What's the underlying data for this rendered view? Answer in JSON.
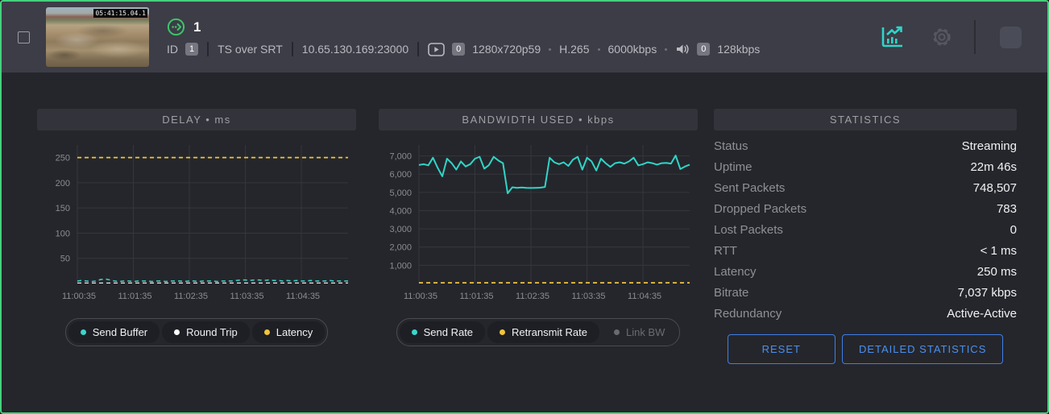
{
  "colors": {
    "accent_teal": "#2fd5c8",
    "accent_yellow": "#f2c43c",
    "accent_green": "#45d17d",
    "accent_blue": "#3f7fe8",
    "header_bg": "#3c3d47",
    "panel_bg": "#25262b",
    "title_bar_bg": "#33343b"
  },
  "header": {
    "title": "1",
    "thumbnail_timecode": "05:41:15.04.1",
    "id_label": "ID",
    "id_badge": "1",
    "protocol": "TS over SRT",
    "address": "10.65.130.169:23000",
    "video_track_badge": "0",
    "video_format": "1280x720p59",
    "video_codec": "H.265",
    "video_bitrate": "6000kbps",
    "audio_track_badge": "0",
    "audio_bitrate": "128kbps"
  },
  "panels": {
    "delay": {
      "title": "DELAY • ms",
      "legend": [
        {
          "label": "Send Buffer",
          "color": "#3bd6cd",
          "active": true
        },
        {
          "label": "Round Trip",
          "color": "#ffffff",
          "active": true
        },
        {
          "label": "Latency",
          "color": "#f2c43c",
          "active": true
        }
      ]
    },
    "bandwidth": {
      "title": "BANDWIDTH USED • kbps",
      "legend": [
        {
          "label": "Send Rate",
          "color": "#3bd6cd",
          "active": true
        },
        {
          "label": "Retransmit Rate",
          "color": "#f2c43c",
          "active": true
        },
        {
          "label": "Link BW",
          "color": "#6a6b72",
          "active": false
        }
      ]
    },
    "statistics": {
      "title": "STATISTICS",
      "rows": [
        {
          "label": "Status",
          "value": "Streaming"
        },
        {
          "label": "Uptime",
          "value": "22m 46s"
        },
        {
          "label": "Sent Packets",
          "value": "748,507"
        },
        {
          "label": "Dropped Packets",
          "value": "783"
        },
        {
          "label": "Lost Packets",
          "value": "0"
        },
        {
          "label": "RTT",
          "value": "< 1 ms"
        },
        {
          "label": "Latency",
          "value": "250 ms"
        },
        {
          "label": "Bitrate",
          "value": "7,037 kbps"
        },
        {
          "label": "Redundancy",
          "value": "Active-Active"
        }
      ],
      "buttons": {
        "reset": "RESET",
        "detailed": "DETAILED STATISTICS"
      }
    }
  },
  "chart_data": [
    {
      "type": "line",
      "title": "DELAY • ms",
      "xtick_labels": [
        "11:00:35",
        "11:01:35",
        "11:02:35",
        "11:03:35",
        "11:04:35"
      ],
      "xticks_s": [
        0,
        60,
        120,
        180,
        240
      ],
      "x_total_s": 290,
      "ylim": [
        0,
        275
      ],
      "yticks": [
        50,
        100,
        150,
        200,
        250
      ],
      "ytick_labels": [
        "50",
        "100",
        "150",
        "200",
        "250"
      ],
      "grid": true,
      "legend_position": "bottom",
      "n_points": 59,
      "series": [
        {
          "name": "Send Buffer",
          "color": "#3bd6cd",
          "dash": true,
          "width": 1.5,
          "values": [
            5,
            6,
            5,
            4,
            5,
            8,
            9,
            7,
            5,
            4,
            5,
            5,
            4,
            5,
            5,
            5,
            4,
            5,
            5,
            4,
            5,
            5,
            5,
            4,
            5,
            5,
            4,
            5,
            5,
            5,
            4,
            5,
            5,
            5,
            6,
            7,
            7,
            6,
            7,
            7,
            6,
            7,
            6,
            6,
            5,
            6,
            5,
            6,
            5,
            5,
            6,
            5,
            5,
            5,
            6,
            5,
            5,
            5,
            5
          ]
        },
        {
          "name": "Round Trip",
          "color": "#e8e9ec",
          "dash": true,
          "width": 1.2,
          "const": 1
        },
        {
          "name": "Latency",
          "color": "#f2c43c",
          "dash": true,
          "width": 1.8,
          "const": 250
        }
      ]
    },
    {
      "type": "line",
      "title": "BANDWIDTH USED • kbps",
      "xtick_labels": [
        "11:00:35",
        "11:01:35",
        "11:02:35",
        "11:03:35",
        "11:04:35"
      ],
      "xticks_s": [
        0,
        60,
        120,
        180,
        240
      ],
      "x_total_s": 290,
      "ylim": [
        0,
        7600
      ],
      "yticks": [
        1000,
        2000,
        3000,
        4000,
        5000,
        6000,
        7000
      ],
      "ytick_labels": [
        "1,000",
        "2,000",
        "3,000",
        "4,000",
        "5,000",
        "6,000",
        "7,000"
      ],
      "grid": true,
      "legend_position": "bottom",
      "n_points": 59,
      "series": [
        {
          "name": "Send Rate",
          "color": "#2fd5c8",
          "width": 2,
          "values": [
            6500,
            6550,
            6480,
            6900,
            6350,
            5880,
            6850,
            6600,
            6250,
            6700,
            6420,
            6550,
            6850,
            6950,
            6300,
            6500,
            6950,
            6750,
            6600,
            4950,
            5280,
            5250,
            5270,
            5250,
            5240,
            5250,
            5260,
            5300,
            6900,
            6650,
            6550,
            6650,
            6450,
            6800,
            6950,
            6250,
            6900,
            6700,
            6200,
            6850,
            6600,
            6400,
            6600,
            6650,
            6580,
            6700,
            6900,
            6480,
            6550,
            6650,
            6600,
            6520,
            6600,
            6620,
            6580,
            7020,
            6280,
            6420,
            6520
          ]
        },
        {
          "name": "Retransmit Rate",
          "color": "#f2c43c",
          "dash": true,
          "width": 1.8,
          "const": 40
        }
      ]
    }
  ]
}
